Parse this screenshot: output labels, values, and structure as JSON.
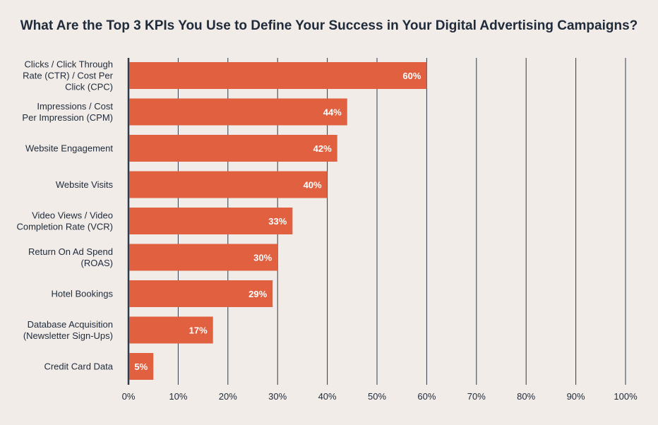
{
  "chart_data": {
    "type": "bar",
    "orientation": "horizontal",
    "title": "What Are the Top 3 KPIs You Use to Define Your Success in Your Digital Advertising Campaigns?",
    "categories": [
      "Clicks / Click Through Rate (CTR) / Cost Per Click (CPC)",
      "Impressions / Cost Per Impression (CPM)",
      "Website Engagement",
      "Website Visits",
      "Video Views / Video Completion Rate (VCR)",
      "Return On Ad Spend (ROAS)",
      "Hotel Bookings",
      "Database Acquisition (Newsletter Sign-Ups)",
      "Credit Card Data"
    ],
    "values": [
      60,
      44,
      42,
      40,
      33,
      30,
      29,
      17,
      5
    ],
    "value_labels": [
      "60%",
      "44%",
      "42%",
      "40%",
      "33%",
      "30%",
      "29%",
      "17%",
      "5%"
    ],
    "category_label_lines": [
      [
        "Clicks / Click Through",
        "Rate (CTR) / Cost Per",
        "Click (CPC)"
      ],
      [
        "Impressions / Cost",
        "Per Impression (CPM)"
      ],
      [
        "Website Engagement"
      ],
      [
        "Website Visits"
      ],
      [
        "Video Views / Video",
        "Completion Rate (VCR)"
      ],
      [
        "Return On Ad Spend",
        "(ROAS)"
      ],
      [
        "Hotel Bookings"
      ],
      [
        "Database Acquisition",
        "(Newsletter Sign-Ups)"
      ],
      [
        "Credit Card Data"
      ]
    ],
    "xlim": [
      0,
      100
    ],
    "xticks": [
      "0%",
      "10%",
      "20%",
      "30%",
      "40%",
      "50%",
      "60%",
      "70%",
      "80%",
      "90%",
      "100%"
    ],
    "grid": true,
    "xlabel": "",
    "ylabel": ""
  },
  "colors": {
    "bar": "#e06040",
    "grid": "#2e3a4a",
    "text": "#1f2a3a",
    "background": "#f1ece8"
  }
}
